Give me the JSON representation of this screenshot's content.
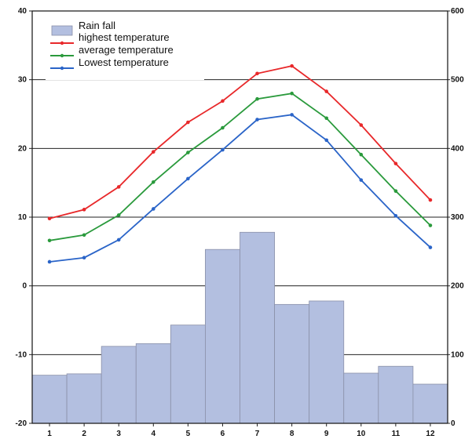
{
  "chart_data": {
    "type": "bar+line",
    "title": "",
    "categories": [
      "1",
      "2",
      "3",
      "4",
      "5",
      "6",
      "7",
      "8",
      "9",
      "10",
      "11",
      "12"
    ],
    "y_left": {
      "label": "",
      "min": -20,
      "max": 40,
      "ticks": [
        40,
        30,
        20,
        10,
        0,
        -10,
        -20
      ]
    },
    "y_right": {
      "label": "",
      "min": 0,
      "max": 600,
      "tick_labels": [
        "600",
        "500",
        "400",
        "300",
        "200",
        "100",
        "0"
      ]
    },
    "grid": {
      "horizontal": true,
      "vertical": false
    },
    "legend": {
      "placement": "top-left"
    },
    "bars": {
      "name": "Rain fall",
      "color": "#b3bfe0",
      "edge": "#8a90a8",
      "values": [
        70,
        72,
        112,
        116,
        143,
        253,
        278,
        173,
        178,
        73,
        83,
        57
      ]
    },
    "series": [
      {
        "name": "highest temperature",
        "color": "#e8282a",
        "values": [
          9.8,
          11.1,
          14.4,
          19.5,
          23.8,
          26.9,
          30.9,
          32.0,
          28.3,
          23.4,
          17.8,
          12.5
        ]
      },
      {
        "name": "average temperature",
        "color": "#2a9a3c",
        "values": [
          6.6,
          7.4,
          10.3,
          15.1,
          19.4,
          23.0,
          27.2,
          28.0,
          24.4,
          19.1,
          13.8,
          8.8
        ]
      },
      {
        "name": "Lowest temperature",
        "color": "#2a64c8",
        "values": [
          3.5,
          4.1,
          6.7,
          11.2,
          15.6,
          19.8,
          24.2,
          24.9,
          21.2,
          15.4,
          10.2,
          5.6
        ]
      }
    ]
  }
}
